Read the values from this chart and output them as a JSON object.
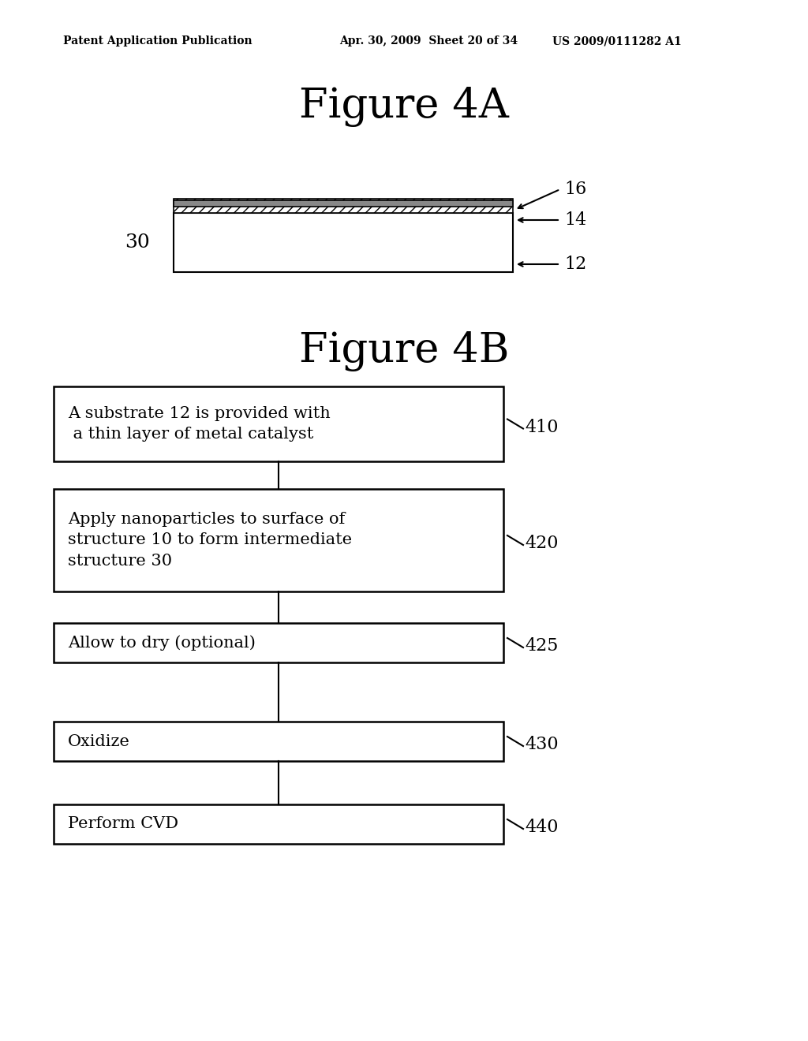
{
  "bg_color": "#ffffff",
  "header_left": "Patent Application Publication",
  "header_mid": "Apr. 30, 2009  Sheet 20 of 34",
  "header_right": "US 2009/0111282 A1",
  "fig4a_title": "Figure 4A",
  "fig4b_title": "Figure 4B",
  "label_30": "30",
  "label_16": "16",
  "label_14": "14",
  "label_12": "12",
  "flow_boxes": [
    {
      "label": "A substrate 12 is provided with\n a thin layer of metal catalyst",
      "ref": "410"
    },
    {
      "label": "Apply nanoparticles to surface of\nstructure 10 to form intermediate\nstructure 30",
      "ref": "420"
    },
    {
      "label": "Allow to dry (optional)",
      "ref": "425"
    },
    {
      "label": "Oxidize",
      "ref": "430"
    },
    {
      "label": "Perform CVD",
      "ref": "440"
    }
  ]
}
